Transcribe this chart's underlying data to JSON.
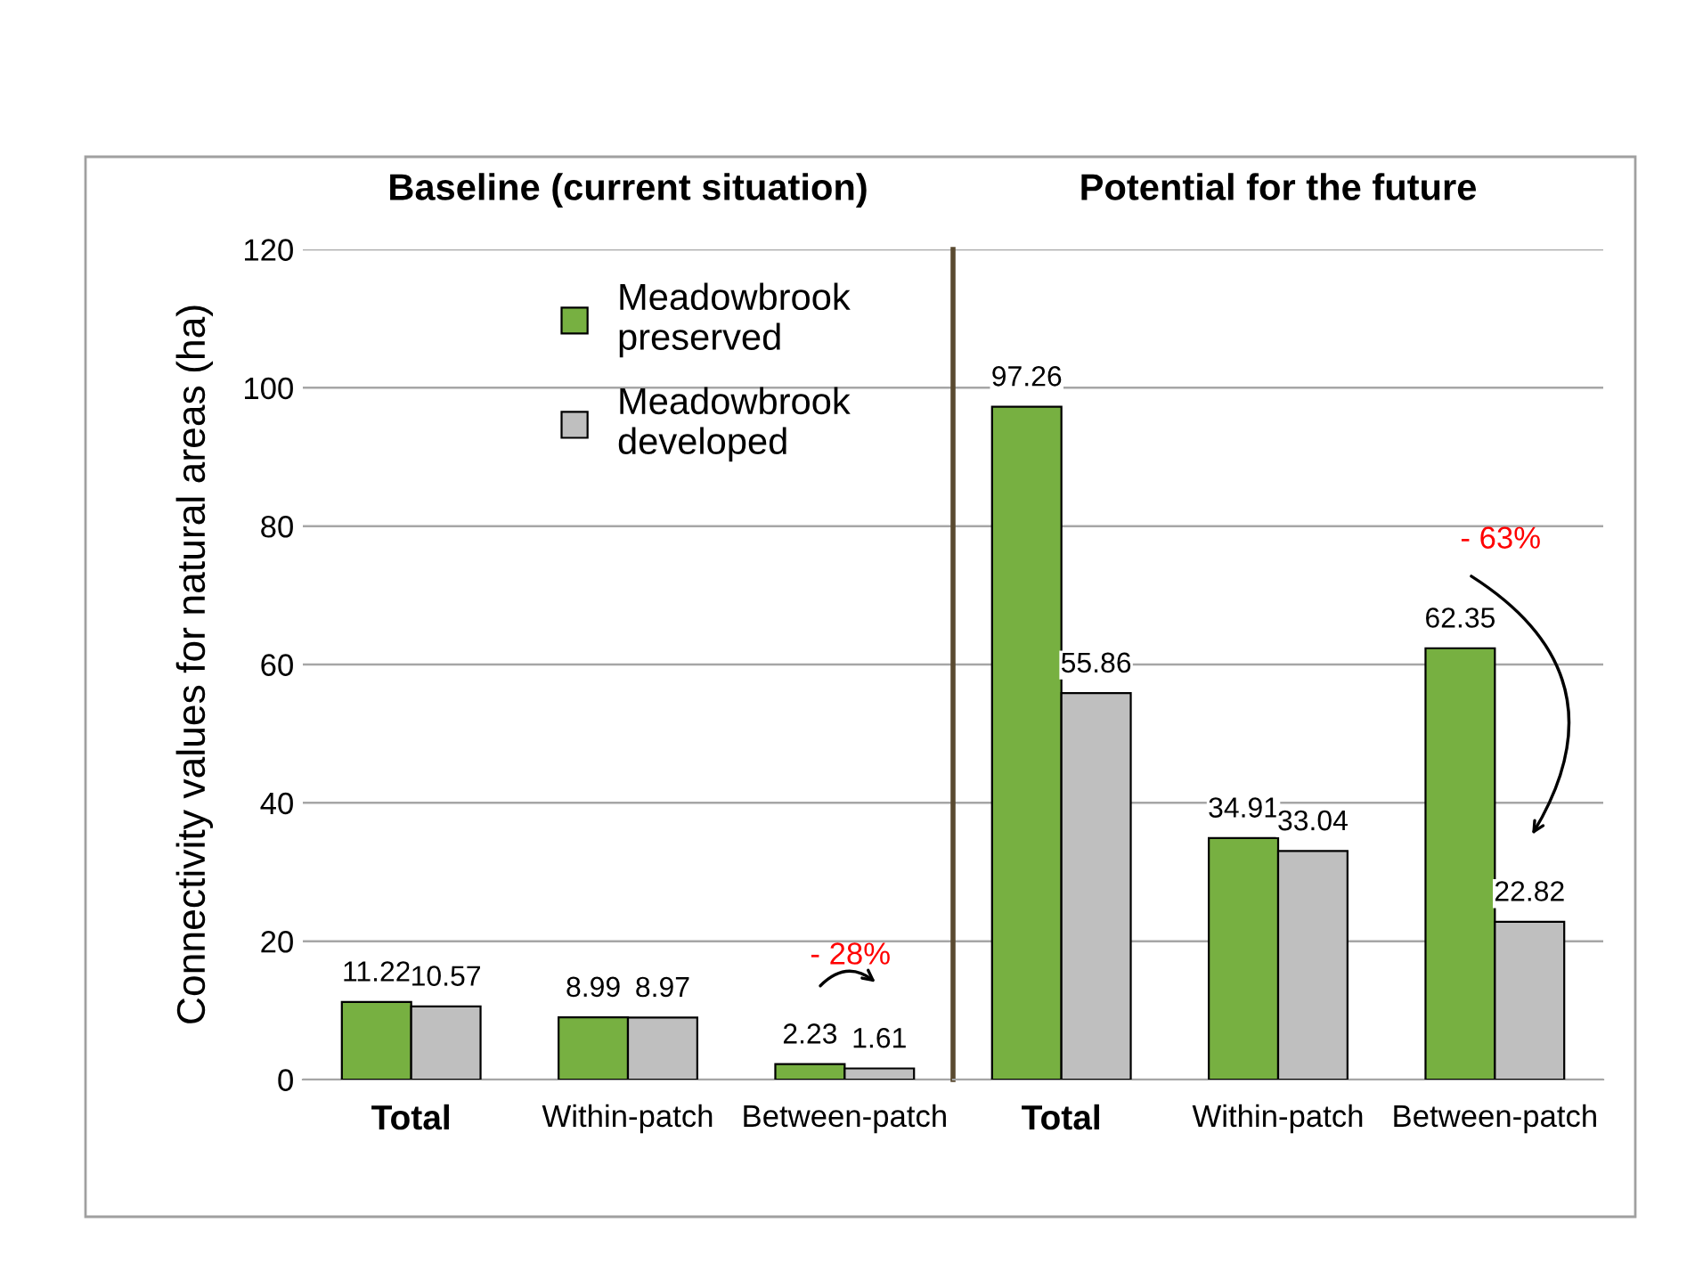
{
  "chart_data": [
    {
      "type": "bar",
      "title": "Baseline (current situation)",
      "ylabel": "Connectivity values for natural areas (ha)",
      "categories": [
        "Total",
        "Within-patch",
        "Between-patch"
      ],
      "series": [
        {
          "name": "Meadowbrook preserved",
          "color": "#77b041",
          "values": [
            11.22,
            8.99,
            2.23
          ]
        },
        {
          "name": "Meadowbrook developed",
          "color": "#bfbfbf",
          "values": [
            10.57,
            8.97,
            1.61
          ]
        }
      ],
      "ylim": [
        0,
        120
      ],
      "yticks": [
        0,
        20,
        40,
        60,
        80,
        100,
        120
      ],
      "grid": "y",
      "legend": "top",
      "data_labels": true,
      "annotations": [
        "- 28%"
      ]
    },
    {
      "type": "bar",
      "title": "Potential for the future",
      "categories": [
        "Total",
        "Within-patch",
        "Between-patch"
      ],
      "series": [
        {
          "color": "#77b041",
          "values": [
            97.26,
            34.91,
            62.35
          ]
        },
        {
          "color": "#bfbfbf",
          "values": [
            55.86,
            33.04,
            22.82
          ]
        }
      ],
      "ylim": [
        0,
        120
      ],
      "yticks": [
        0,
        20,
        40,
        60,
        80,
        100,
        120
      ],
      "grid": "y",
      "tick_labels": "x",
      "data_labels": true,
      "annotations": [
        "- 63%"
      ]
    }
  ]
}
